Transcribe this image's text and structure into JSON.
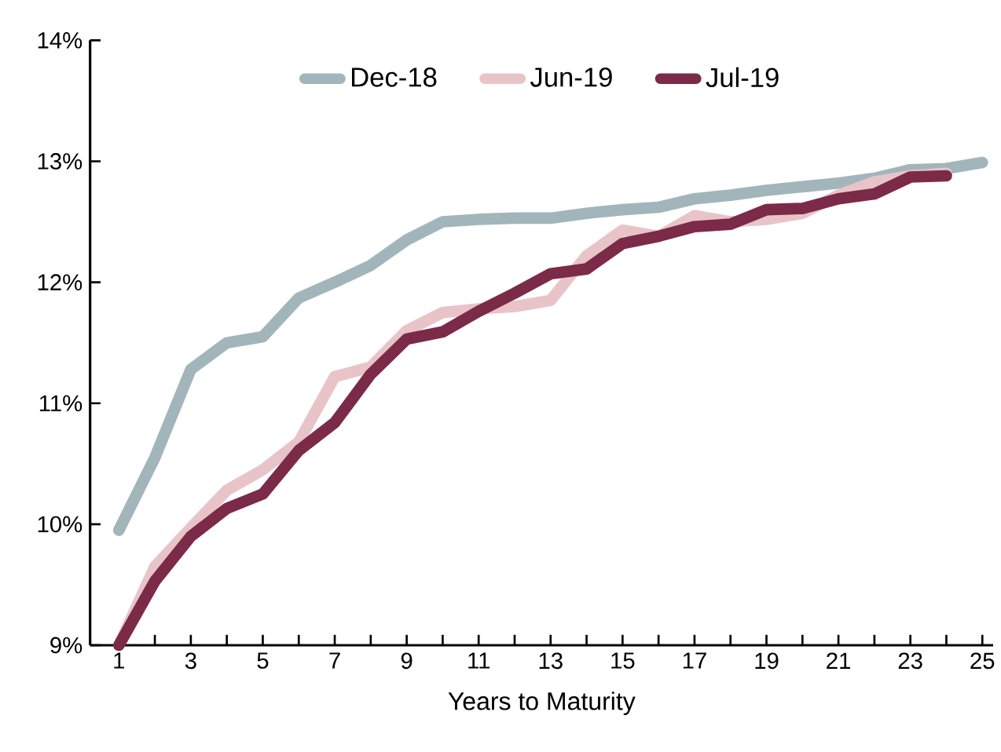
{
  "chart_data": {
    "type": "line",
    "xlabel": "Years to Maturity",
    "x": [
      1,
      2,
      3,
      4,
      5,
      6,
      7,
      8,
      9,
      10,
      11,
      12,
      13,
      14,
      15,
      16,
      17,
      18,
      19,
      20,
      21,
      22,
      23,
      24,
      25
    ],
    "series": [
      {
        "name": "Dec-18",
        "color": "#a2b5bb",
        "values": [
          9.95,
          10.55,
          11.28,
          11.5,
          11.55,
          11.87,
          12.0,
          12.14,
          12.35,
          12.5,
          12.52,
          12.53,
          12.53,
          12.57,
          12.6,
          12.62,
          12.69,
          12.72,
          12.76,
          12.79,
          12.82,
          12.86,
          12.93,
          12.94,
          12.99
        ]
      },
      {
        "name": "Jun-19",
        "color": "#e8c4c8",
        "values": [
          9.0,
          9.65,
          9.97,
          10.28,
          10.45,
          10.68,
          11.22,
          11.3,
          11.6,
          11.75,
          11.78,
          11.8,
          11.85,
          12.22,
          12.43,
          12.38,
          12.55,
          12.5,
          12.52,
          12.57,
          12.72,
          12.83,
          12.88,
          12.9,
          null
        ]
      },
      {
        "name": "Jul-19",
        "color": "#7b2a47",
        "values": [
          9.0,
          9.53,
          9.9,
          10.13,
          10.25,
          10.61,
          10.84,
          11.24,
          11.53,
          11.59,
          11.76,
          11.91,
          12.07,
          12.11,
          12.32,
          12.38,
          12.46,
          12.48,
          12.6,
          12.61,
          12.69,
          12.73,
          12.87,
          12.88,
          null
        ]
      }
    ],
    "xlim": [
      0.2,
      25.3
    ],
    "xticks": [
      1,
      {
        "value": 2,
        "label": null
      },
      3,
      {
        "value": 4,
        "label": null
      },
      5,
      {
        "value": 6,
        "label": null
      },
      7,
      {
        "value": 8,
        "label": null
      },
      9,
      {
        "value": 10,
        "label": null
      },
      11,
      {
        "value": 12,
        "label": null
      },
      13,
      {
        "value": 14,
        "label": null
      },
      15,
      {
        "value": 16,
        "label": null
      },
      17,
      {
        "value": 18,
        "label": null
      },
      19,
      {
        "value": 20,
        "label": null
      },
      21,
      {
        "value": 22,
        "label": null
      },
      23,
      {
        "value": 24,
        "label": null
      },
      25
    ],
    "ylim": [
      9,
      14
    ],
    "yticks": [
      {
        "value": 9,
        "label": "9%"
      },
      {
        "value": 10,
        "label": "10%"
      },
      {
        "value": 11,
        "label": "11%"
      },
      {
        "value": 12,
        "label": "12%"
      },
      {
        "value": 13,
        "label": "13%"
      },
      {
        "value": 14,
        "label": "14%"
      }
    ],
    "grid": false,
    "legend": "top",
    "marker": "none",
    "line_style": "solid"
  }
}
